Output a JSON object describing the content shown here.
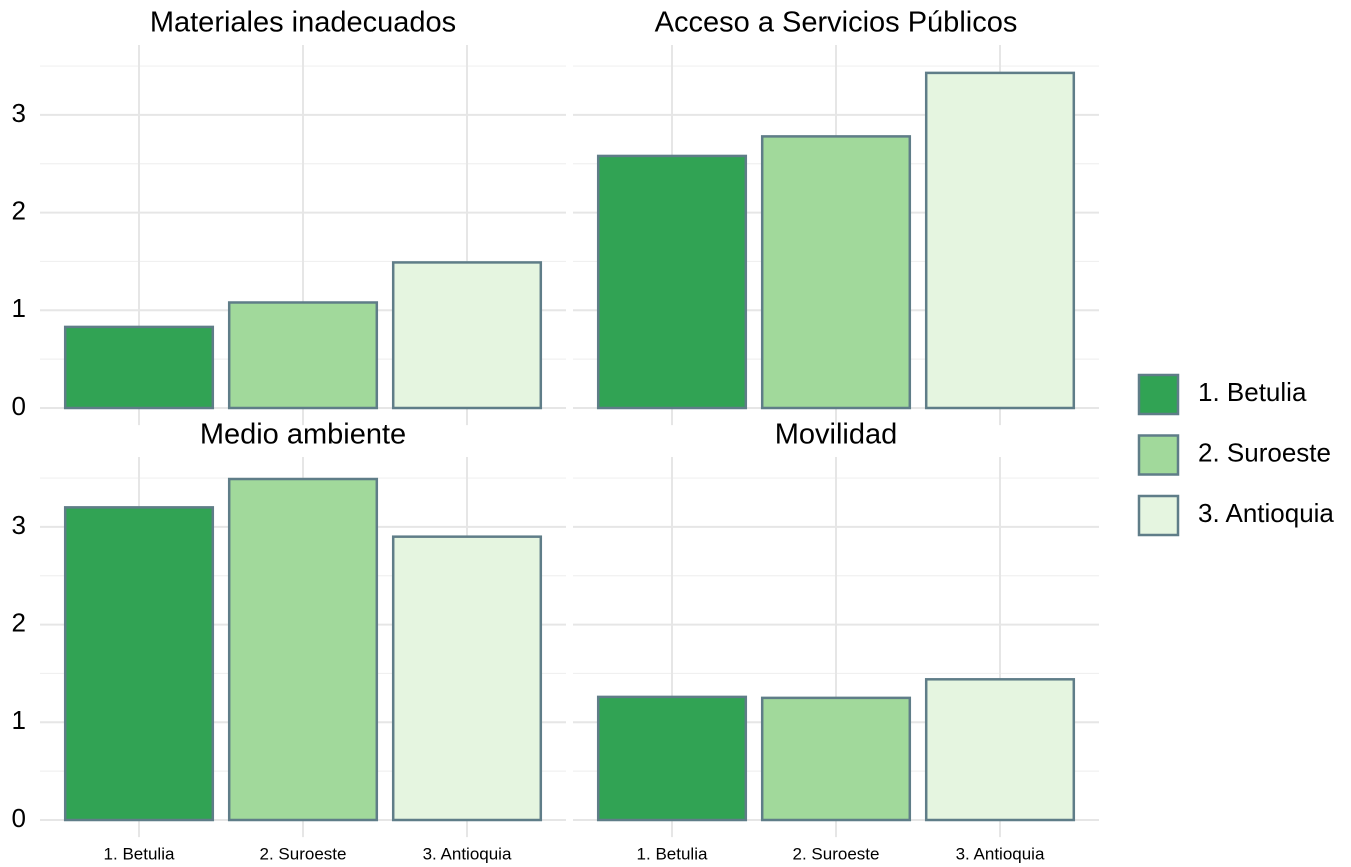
{
  "chart_data": [
    {
      "type": "bar",
      "title": "Materiales inadecuados",
      "categories": [
        "1. Betulia",
        "2. Suroeste",
        "3. Antioquia"
      ],
      "values": [
        0.83,
        1.08,
        1.49
      ],
      "colors": [
        "#31a354",
        "#a1d99b",
        "#e5f5e0"
      ],
      "ylim": [
        -0.175,
        3.675
      ],
      "yticks": [
        0,
        1,
        2,
        3
      ],
      "minor_yticks": [
        0.5,
        1.5,
        2.5,
        3.5
      ],
      "grid": true
    },
    {
      "type": "bar",
      "title": "Acceso a Servicios Públicos",
      "categories": [
        "1. Betulia",
        "2. Suroeste",
        "3. Antioquia"
      ],
      "values": [
        2.58,
        2.78,
        3.43
      ],
      "colors": [
        "#31a354",
        "#a1d99b",
        "#e5f5e0"
      ],
      "ylim": [
        -0.175,
        3.675
      ],
      "yticks": [
        0,
        1,
        2,
        3
      ],
      "minor_yticks": [
        0.5,
        1.5,
        2.5,
        3.5
      ],
      "grid": true
    },
    {
      "type": "bar",
      "title": "Medio ambiente",
      "categories": [
        "1. Betulia",
        "2. Suroeste",
        "3. Antioquia"
      ],
      "values": [
        3.2,
        3.49,
        2.9
      ],
      "colors": [
        "#31a354",
        "#a1d99b",
        "#e5f5e0"
      ],
      "ylim": [
        -0.175,
        3.675
      ],
      "yticks": [
        0,
        1,
        2,
        3
      ],
      "minor_yticks": [
        0.5,
        1.5,
        2.5,
        3.5
      ],
      "grid": true
    },
    {
      "type": "bar",
      "title": "Movilidad",
      "categories": [
        "1. Betulia",
        "2. Suroeste",
        "3. Antioquia"
      ],
      "values": [
        1.26,
        1.25,
        1.44
      ],
      "colors": [
        "#31a354",
        "#a1d99b",
        "#e5f5e0"
      ],
      "ylim": [
        -0.175,
        3.675
      ],
      "yticks": [
        0,
        1,
        2,
        3
      ],
      "minor_yticks": [
        0.5,
        1.5,
        2.5,
        3.5
      ],
      "grid": true
    }
  ]
}
